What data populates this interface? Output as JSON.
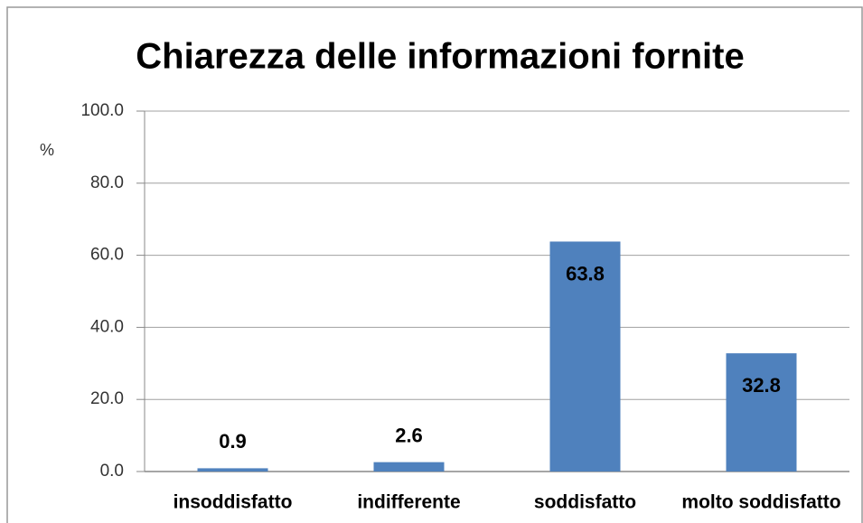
{
  "chart_data": {
    "type": "bar",
    "title": "Chiarezza delle informazioni fornite",
    "y_label": "%",
    "categories": [
      "insoddisfatto",
      "indifferente",
      "soddisfatto",
      "molto soddisfatto"
    ],
    "values": [
      0.9,
      2.6,
      63.8,
      32.8
    ],
    "color": "#4f81bd",
    "ylim": [
      0,
      100
    ],
    "yticks": [
      {
        "value": 0,
        "label": "0.0"
      },
      {
        "value": 20,
        "label": "20.0"
      },
      {
        "value": 40,
        "label": "40.0"
      },
      {
        "value": 60,
        "label": "60.0"
      },
      {
        "value": 80,
        "label": "80.0"
      },
      {
        "value": 100,
        "label": "100.0"
      }
    ],
    "grid": true
  }
}
